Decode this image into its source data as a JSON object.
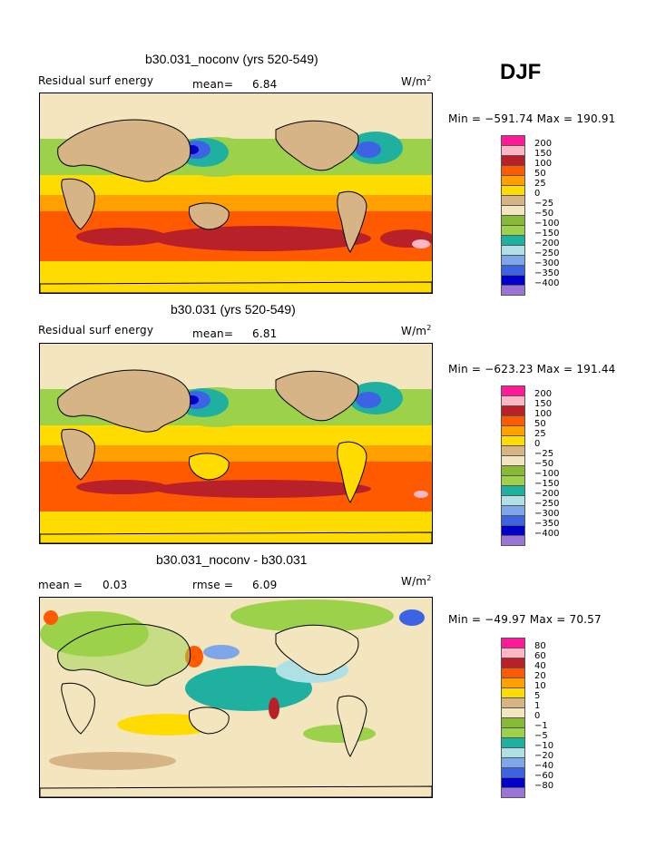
{
  "season": "DJF",
  "unit_base": "W/m",
  "unit_exp": "2",
  "palette": {
    "c_m400": "#9a74d6",
    "c_m350": "#0000c8",
    "c_m300": "#3c63e4",
    "c_m250": "#7ea6e8",
    "c_m200": "#aee0e6",
    "c_m150": "#20b0a0",
    "c_m100": "#9bd24a",
    "c_m50": "#88b838",
    "c_m25": "#f3e6be",
    "c_0": "#d6b485",
    "c_25": "#ffdc00",
    "c_50": "#ffa000",
    "c_100": "#ff5a00",
    "c_150": "#b8202a",
    "c_200": "#ffb6c4",
    "c_top": "#ff1a9a",
    "land": "#d6b485",
    "coast": "#000000"
  },
  "panels": [
    {
      "title": "b30.031_noconv (yrs 520-549)",
      "left_label": "Residual surf energy",
      "stat1_label": "mean=",
      "stat1_value": "6.84",
      "stat2_label": "",
      "stat2_value": "",
      "minmax": "Min = −591.74 Max = 190.91",
      "levels": [
        "200",
        "150",
        "100",
        "50",
        "25",
        "0",
        "−25",
        "−50",
        "−100",
        "−150",
        "−200",
        "−250",
        "−300",
        "−350",
        "−400"
      ]
    },
    {
      "title": "b30.031 (yrs 520-549)",
      "left_label": "Residual surf energy",
      "stat1_label": "mean=",
      "stat1_value": "6.81",
      "stat2_label": "",
      "stat2_value": "",
      "minmax": "Min = −623.23 Max = 191.44",
      "levels": [
        "200",
        "150",
        "100",
        "50",
        "25",
        "0",
        "−25",
        "−50",
        "−100",
        "−150",
        "−200",
        "−250",
        "−300",
        "−350",
        "−400"
      ]
    },
    {
      "title": "b30.031_noconv - b30.031",
      "left_label": "mean =",
      "stat1_label": "",
      "stat1_value": "0.03",
      "stat2_label": "rmse =",
      "stat2_value": "6.09",
      "minmax": "Min = −49.97 Max =  70.57",
      "levels": [
        "80",
        "60",
        "40",
        "20",
        "10",
        "5",
        "1",
        "0",
        "−1",
        "−5",
        "−10",
        "−20",
        "−40",
        "−60",
        "−80"
      ]
    }
  ],
  "chart_data": [
    {
      "type": "heatmap",
      "title": "b30.031_noconv (yrs 520-549)",
      "variable": "Residual surf energy",
      "units": "W/m2",
      "season": "DJF",
      "mean": 6.84,
      "min": -591.74,
      "max": 190.91,
      "contour_levels": [
        -400,
        -350,
        -300,
        -250,
        -200,
        -150,
        -100,
        -50,
        -25,
        0,
        25,
        50,
        100,
        150,
        200
      ]
    },
    {
      "type": "heatmap",
      "title": "b30.031 (yrs 520-549)",
      "variable": "Residual surf energy",
      "units": "W/m2",
      "season": "DJF",
      "mean": 6.81,
      "min": -623.23,
      "max": 191.44,
      "contour_levels": [
        -400,
        -350,
        -300,
        -250,
        -200,
        -150,
        -100,
        -50,
        -25,
        0,
        25,
        50,
        100,
        150,
        200
      ]
    },
    {
      "type": "heatmap",
      "title": "b30.031_noconv - b30.031",
      "units": "W/m2",
      "season": "DJF",
      "mean": 0.03,
      "rmse": 6.09,
      "min": -49.97,
      "max": 70.57,
      "contour_levels": [
        -80,
        -60,
        -40,
        -20,
        -10,
        -5,
        -1,
        0,
        1,
        5,
        10,
        20,
        40,
        60,
        80
      ]
    }
  ]
}
